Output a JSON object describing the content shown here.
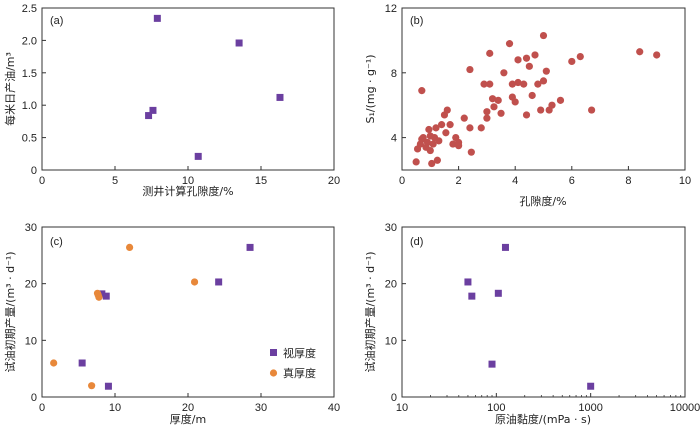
{
  "colors": {
    "square": "#6b3fa0",
    "circle": "#c0504d",
    "orange": "#e8883a"
  },
  "chart_data": [
    {
      "panel": "(a)",
      "type": "scatter",
      "xlabel": "测井计算孔隙度/%",
      "ylabel": "每米日产油/m³",
      "xlim": [
        0,
        20
      ],
      "ylim": [
        0,
        2.5
      ],
      "xticks": [
        "0",
        "5",
        "10",
        "15",
        "20"
      ],
      "yticks": [
        "0",
        "0.5",
        "1.0",
        "1.5",
        "2.0",
        "2.5"
      ],
      "series": [
        {
          "name": "",
          "marker": "square",
          "color": "#6b3fa0",
          "points": [
            [
              7.9,
              2.34
            ],
            [
              13.5,
              1.96
            ],
            [
              16.3,
              1.12
            ],
            [
              7.6,
              0.92
            ],
            [
              7.3,
              0.84
            ],
            [
              10.7,
              0.21
            ]
          ]
        }
      ]
    },
    {
      "panel": "(b)",
      "type": "scatter",
      "xlabel": "孔隙度/%",
      "ylabel": "S₁/(mg · g⁻¹)",
      "xlim": [
        0,
        10
      ],
      "ylim": [
        2,
        12
      ],
      "xticks": [
        "0",
        "2",
        "4",
        "6",
        "8",
        "10"
      ],
      "yticks": [
        "4",
        "8",
        "12"
      ],
      "series": [
        {
          "name": "",
          "marker": "circle",
          "color": "#c0504d",
          "points": [
            [
              0.5,
              2.5
            ],
            [
              0.55,
              3.3
            ],
            [
              0.65,
              3.6
            ],
            [
              0.7,
              3.9
            ],
            [
              0.75,
              4.0
            ],
            [
              0.7,
              6.9
            ],
            [
              0.85,
              3.4
            ],
            [
              0.9,
              3.7
            ],
            [
              0.95,
              4.5
            ],
            [
              1.0,
              3.2
            ],
            [
              1.05,
              2.4
            ],
            [
              1.1,
              3.6
            ],
            [
              1.15,
              4.0
            ],
            [
              1.2,
              4.6
            ],
            [
              1.25,
              2.6
            ],
            [
              1.3,
              3.8
            ],
            [
              1.4,
              4.8
            ],
            [
              1.5,
              5.4
            ],
            [
              1.55,
              4.3
            ],
            [
              1.6,
              5.7
            ],
            [
              1.7,
              4.8
            ],
            [
              1.8,
              3.6
            ],
            [
              1.9,
              4.0
            ],
            [
              2.0,
              3.5
            ],
            [
              2.2,
              5.2
            ],
            [
              2.4,
              4.6
            ],
            [
              2.4,
              8.2
            ],
            [
              2.45,
              3.1
            ],
            [
              2.8,
              4.6
            ],
            [
              2.9,
              7.3
            ],
            [
              3.0,
              5.2
            ],
            [
              3.0,
              5.6
            ],
            [
              3.1,
              7.3
            ],
            [
              3.1,
              9.2
            ],
            [
              3.2,
              6.4
            ],
            [
              3.25,
              5.9
            ],
            [
              3.4,
              6.3
            ],
            [
              3.5,
              5.5
            ],
            [
              3.6,
              8.0
            ],
            [
              3.8,
              9.8
            ],
            [
              3.9,
              6.5
            ],
            [
              3.9,
              7.3
            ],
            [
              4.0,
              6.2
            ],
            [
              4.1,
              8.8
            ],
            [
              4.1,
              7.4
            ],
            [
              4.3,
              7.3
            ],
            [
              4.4,
              5.4
            ],
            [
              4.5,
              8.4
            ],
            [
              4.6,
              6.6
            ],
            [
              4.7,
              9.1
            ],
            [
              4.8,
              7.3
            ],
            [
              4.9,
              5.7
            ],
            [
              5.0,
              10.3
            ],
            [
              5.0,
              7.5
            ],
            [
              5.1,
              8.1
            ],
            [
              5.2,
              5.7
            ],
            [
              5.3,
              6.0
            ],
            [
              5.6,
              6.3
            ],
            [
              6.0,
              8.7
            ],
            [
              6.3,
              9.0
            ],
            [
              6.7,
              5.7
            ],
            [
              8.4,
              9.3
            ],
            [
              9.0,
              9.1
            ],
            [
              4.4,
              8.9
            ],
            [
              1.0,
              4.1
            ],
            [
              2.0,
              3.7
            ]
          ]
        }
      ]
    },
    {
      "panel": "(c)",
      "type": "scatter",
      "xlabel": "厚度/m",
      "ylabel": "试油初期产量/(m³ · d⁻¹)",
      "xlim": [
        0,
        40
      ],
      "ylim": [
        0,
        30
      ],
      "xticks": [
        "0",
        "10",
        "20",
        "30",
        "40"
      ],
      "yticks": [
        "0",
        "10",
        "20",
        "30"
      ],
      "legend": [
        "视厚度",
        "真厚度"
      ],
      "series": [
        {
          "name": "视厚度",
          "marker": "square",
          "color": "#6b3fa0",
          "points": [
            [
              28.5,
              26.4
            ],
            [
              24.2,
              20.3
            ],
            [
              8.8,
              17.8
            ],
            [
              8.2,
              18.2
            ],
            [
              5.5,
              6.0
            ],
            [
              9.1,
              1.9
            ]
          ]
        },
        {
          "name": "真厚度",
          "marker": "circle",
          "color": "#e8883a",
          "points": [
            [
              12.0,
              26.4
            ],
            [
              20.9,
              20.3
            ],
            [
              7.6,
              18.3
            ],
            [
              7.8,
              17.6
            ],
            [
              7.7,
              18.0
            ],
            [
              1.6,
              6.0
            ],
            [
              6.8,
              2.0
            ]
          ]
        }
      ]
    },
    {
      "panel": "(d)",
      "type": "scatter",
      "xlabel": "原油黏度/(mPa · s)",
      "ylabel": "试油初期产量/(m³ · d⁻¹)",
      "xscale": "log",
      "xlim": [
        10,
        10000
      ],
      "ylim": [
        0,
        30
      ],
      "xticks": [
        "10",
        "100",
        "1000",
        "10000"
      ],
      "yticks": [
        "0",
        "10",
        "20",
        "30"
      ],
      "series": [
        {
          "name": "",
          "marker": "square",
          "color": "#6b3fa0",
          "points": [
            [
              125,
              26.4
            ],
            [
              50,
              20.3
            ],
            [
              55,
              17.8
            ],
            [
              105,
              18.3
            ],
            [
              90,
              5.8
            ],
            [
              1000,
              1.9
            ]
          ]
        }
      ]
    }
  ]
}
